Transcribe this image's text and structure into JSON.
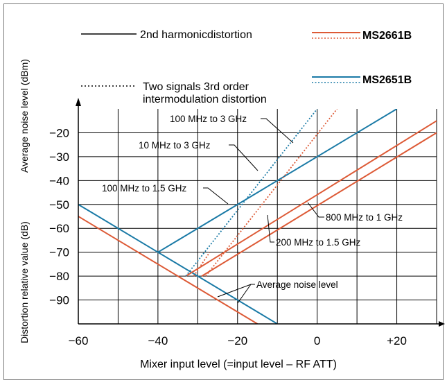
{
  "chart_data": {
    "type": "line",
    "xlabel": "Mixer input level (=input level – RF ATT)",
    "ylabel_upper": "Average noise level (dBm)",
    "ylabel_lower": "Distortion relative value (dB)",
    "xlim": [
      -60,
      30
    ],
    "ylim": [
      -100,
      -10
    ],
    "x_ticks": [
      {
        "value": -60,
        "label": "−60"
      },
      {
        "value": -40,
        "label": "−40"
      },
      {
        "value": -20,
        "label": "−20"
      },
      {
        "value": 0,
        "label": "0"
      },
      {
        "value": 20,
        "label": "+20"
      }
    ],
    "y_ticks": [
      {
        "value": -20,
        "label": "−20"
      },
      {
        "value": -30,
        "label": "−30"
      },
      {
        "value": -40,
        "label": "−40"
      },
      {
        "value": -50,
        "label": "−50"
      },
      {
        "value": -60,
        "label": "−60"
      },
      {
        "value": -70,
        "label": "−70"
      },
      {
        "value": -80,
        "label": "−80"
      },
      {
        "value": -90,
        "label": "−90"
      }
    ],
    "grid": true,
    "colors": {
      "MS2661B": "#dd5a36",
      "MS2651B": "#1a7aa6",
      "axis": "#000000"
    },
    "legend": {
      "placement": "top",
      "items": [
        {
          "label": "2nd harmonicdistortion",
          "style": "solid",
          "color": "#000000"
        },
        {
          "label": "MS2661B",
          "style": "solid+dotted",
          "color": "#dd5a36",
          "bold": true
        },
        {
          "label": "Two signals 3rd order",
          "label2": "intermodulation distortion",
          "style": "dotted",
          "color": "#000000"
        },
        {
          "label": "MS2651B",
          "style": "solid+dotted",
          "color": "#1a7aa6",
          "bold": true
        }
      ]
    },
    "series": [
      {
        "instrument": "MS2661B",
        "kind": "average noise level",
        "style": "solid",
        "color": "#dd5a36",
        "points": [
          [
            -60,
            -55
          ],
          [
            -15,
            -100
          ]
        ]
      },
      {
        "instrument": "MS2651B",
        "kind": "average noise level",
        "style": "solid",
        "color": "#1a7aa6",
        "points": [
          [
            -60,
            -50
          ],
          [
            -40,
            -70
          ],
          [
            -10,
            -100
          ]
        ]
      },
      {
        "instrument": "MS2651B",
        "kind": "2nd harmonic distortion",
        "style": "solid",
        "color": "#1a7aa6",
        "points": [
          [
            -40,
            -70
          ],
          [
            20,
            -10
          ]
        ]
      },
      {
        "instrument": "MS2661B",
        "kind": "2nd harmonic distortion, 200 MHz to 1.5 GHz",
        "style": "solid",
        "color": "#dd5a36",
        "points": [
          [
            -33,
            -80
          ],
          [
            30,
            -15
          ]
        ]
      },
      {
        "instrument": "MS2661B",
        "kind": "2nd harmonic distortion, 800 MHz to 1 GHz",
        "style": "solid",
        "color": "#dd5a36",
        "points": [
          [
            -29,
            -80
          ],
          [
            30,
            -20
          ]
        ]
      },
      {
        "instrument": "MS2651B",
        "kind": "3rd order intermodulation distortion",
        "style": "dotted",
        "color": "#1a7aa6",
        "points": [
          [
            -33,
            -80
          ],
          [
            0,
            -10
          ]
        ]
      },
      {
        "instrument": "MS2661B",
        "kind": "3rd order intermodulation distortion, 100 MHz to 3 GHz",
        "style": "dotted",
        "color": "#dd5a36",
        "points": [
          [
            -28,
            -80
          ],
          [
            5,
            -10
          ]
        ]
      },
      {
        "instrument": "MS2661B",
        "kind": "3rd order intermodulation distortion",
        "style": "dotted",
        "color": "#dd5a36",
        "points": [
          [
            -31,
            -80
          ],
          [
            -27,
            -70
          ]
        ]
      }
    ],
    "annotations": [
      {
        "text": "100 MHz to 3 GHz"
      },
      {
        "text": "10 MHz to 3 GHz"
      },
      {
        "text": "100 MHz to 1.5 GHz"
      },
      {
        "text": "800 MHz to 1 GHz"
      },
      {
        "text": "200 MHz to 1.5 GHz"
      },
      {
        "text": "Average noise level"
      }
    ]
  }
}
